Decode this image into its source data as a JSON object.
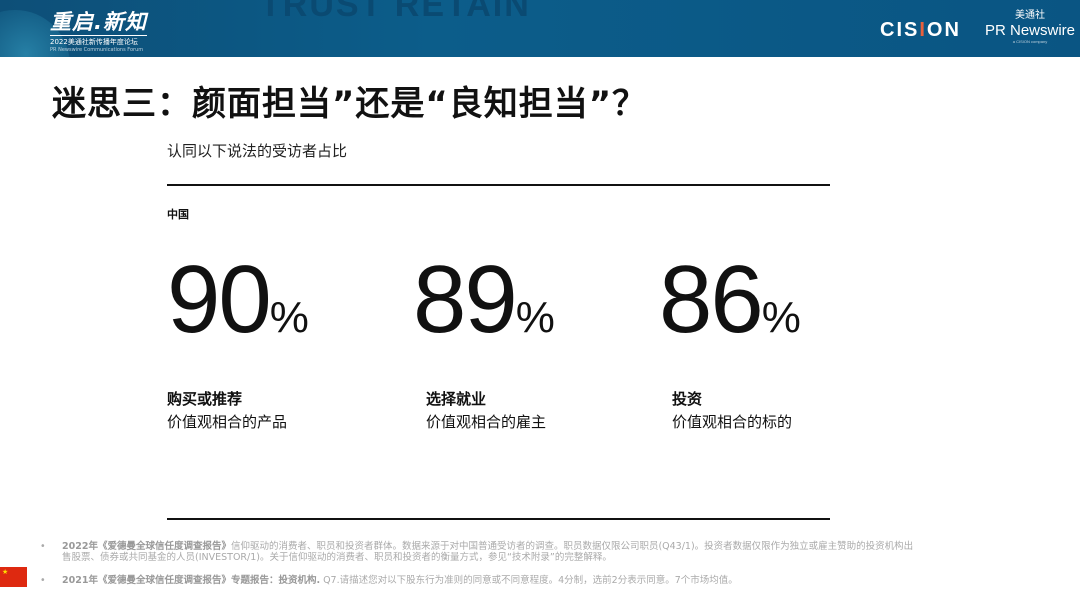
{
  "header": {
    "watermark": "TRUST RETAIN",
    "brand_title": "重启.新知",
    "brand_subtitle": "2022美通社新传播年度论坛",
    "brand_english": "PR Newswire Communications Forum",
    "cision_logo": "CISION",
    "prn_cn": "美通社",
    "prn_en": "PR Newswire",
    "prn_tag": "a CISION company",
    "accent": "#0c5d8a"
  },
  "title": "迷思三：颜面担当”还是“良知担当”？",
  "subtitle": "认同以下说法的受访者占比",
  "region": "中国",
  "stats": [
    {
      "value": "90",
      "unit": "%",
      "label": "购买或推荐",
      "desc": "价值观相合的产品"
    },
    {
      "value": "89",
      "unit": "%",
      "label": "选择就业",
      "desc": "价值观相合的雇主"
    },
    {
      "value": "86",
      "unit": "%",
      "label": "投资",
      "desc": "价值观相合的标的"
    }
  ],
  "notes": [
    {
      "bold": "2022年《爱德曼全球信任度调查报告》",
      "text": "信仰驱动的消费者、职员和投资者群体。数据来源于对中国普通受访者的调查。职员数据仅限公司职员(Q43/1)。投资者数据仅限作为独立或雇主赞助的投资机构出售股票、债券或共同基金的人员(INVESTOR/1)。关于信仰驱动的消费者、职员和投资者的衡量方式，参见“技术附录”的完整解释。"
    },
    {
      "bold": "2021年《爱德曼全球信任度调查报告》专题报告：投资机构.",
      "text": " Q7.请描述您对以下股东行为准则的同意或不同意程度。4分制，选前2分表示同意。7个市场均值。"
    }
  ]
}
